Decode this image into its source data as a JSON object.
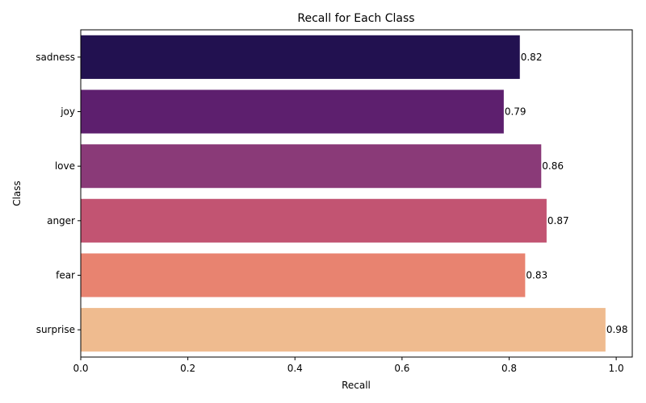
{
  "chart_data": {
    "type": "bar",
    "orientation": "horizontal",
    "title": "Recall for Each Class",
    "xlabel": "Recall",
    "ylabel": "Class",
    "categories": [
      "sadness",
      "joy",
      "love",
      "anger",
      "fear",
      "surprise"
    ],
    "values": [
      0.82,
      0.79,
      0.86,
      0.87,
      0.83,
      0.98
    ],
    "value_labels": [
      "0.82",
      "0.79",
      "0.86",
      "0.87",
      "0.83",
      "0.98"
    ],
    "colors": [
      "#221150",
      "#5d1f6e",
      "#8a3a78",
      "#c25472",
      "#e88370",
      "#efbb8f"
    ],
    "xlim": [
      0,
      1.03
    ],
    "xticks": [
      0.0,
      0.2,
      0.4,
      0.6,
      0.8,
      1.0
    ],
    "xtick_labels": [
      "0.0",
      "0.2",
      "0.4",
      "0.6",
      "0.8",
      "1.0"
    ],
    "grid": false,
    "legend": "none"
  }
}
